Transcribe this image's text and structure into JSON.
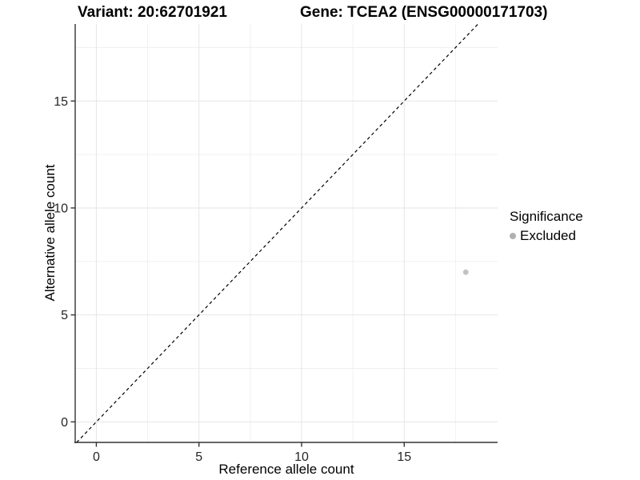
{
  "header": {
    "title_left": "Variant: 20:62701921",
    "title_right": "Gene: TCEA2 (ENSG00000171703)"
  },
  "chart_data": {
    "type": "scatter",
    "title_left": "Variant: 20:62701921",
    "title_right": "Gene: TCEA2 (ENSG00000171703)",
    "xlabel": "Reference allele count",
    "ylabel": "Alternative allele count",
    "xlim": [
      -1.03,
      19.55
    ],
    "ylim": [
      -0.96,
      18.6
    ],
    "x_major_ticks": [
      0,
      5,
      10,
      15
    ],
    "y_major_ticks": [
      0,
      5,
      10,
      15
    ],
    "x_minor_ticks": [
      2.5,
      7.5,
      12.5,
      17.5
    ],
    "y_minor_ticks": [
      2.5,
      7.5,
      12.5,
      17.5
    ],
    "grid": true,
    "series": [
      {
        "name": "Excluded",
        "color": "#c2c2c2",
        "marker": "circle",
        "points": [
          {
            "x": 18,
            "y": 7
          }
        ]
      }
    ],
    "identity_line": {
      "style": "dashed",
      "color": "#000000",
      "equation": "y = x"
    },
    "legend": {
      "title": "Significance",
      "position": "right",
      "entries": [
        {
          "label": "Excluded",
          "color": "#b0b0b0",
          "marker": "circle"
        }
      ]
    },
    "colors": {
      "background": "#ffffff",
      "grid_major": "#e6e6e6",
      "grid_minor": "#f0f0f0",
      "axis_line": "#333333",
      "tick_mark": "#333333",
      "tick_text": "#262626",
      "point": "#c2c2c2"
    }
  }
}
